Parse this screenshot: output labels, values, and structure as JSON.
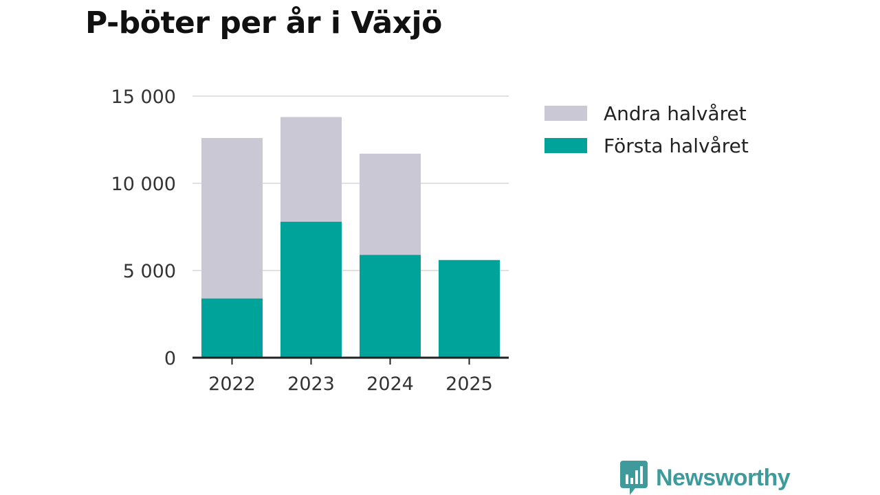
{
  "chart_data": {
    "type": "bar",
    "stacked": true,
    "title": "P-böter per år i Växjö",
    "categories": [
      "2022",
      "2023",
      "2024",
      "2025"
    ],
    "series": [
      {
        "name": "Första halvåret",
        "color": "#00a39a",
        "values": [
          3400,
          7800,
          5900,
          5600
        ]
      },
      {
        "name": "Andra halvåret",
        "color": "#c9c8d4",
        "values": [
          9200,
          6000,
          5800,
          0
        ]
      }
    ],
    "legend_order": [
      "Andra halvåret",
      "Första halvåret"
    ],
    "legend_position": "right",
    "y_ticks": [
      0,
      5000,
      10000,
      15000
    ],
    "y_tick_labels": [
      "0",
      "5 000",
      "10 000",
      "15 000"
    ],
    "ylim": [
      0,
      15000
    ],
    "grid": true,
    "xlabel": "",
    "ylabel": ""
  },
  "brand": {
    "name": "Newsworthy",
    "color": "#3f9b9b"
  }
}
